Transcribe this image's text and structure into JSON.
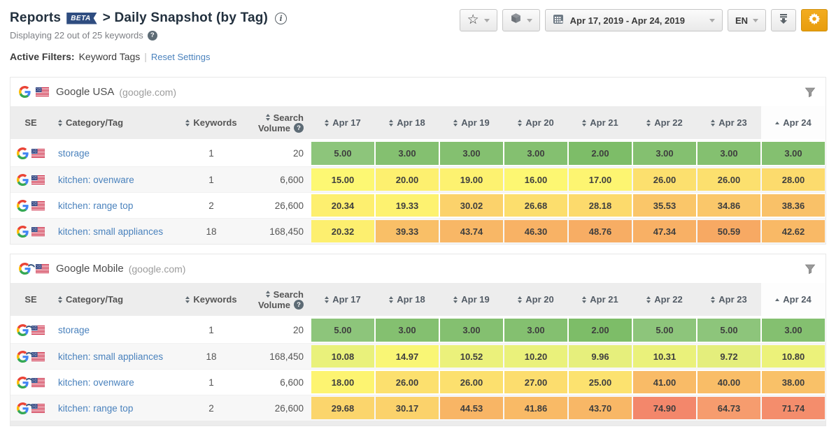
{
  "page": {
    "title": "Reports",
    "beta_badge": "BETA",
    "subtitle": "> Daily Snapshot (by Tag)",
    "info_icon_glyph": "i",
    "displaying_text": "Displaying 22 out of 25 keywords",
    "help_icon_glyph": "?",
    "active_filters_label": "Active Filters:",
    "active_filters_value": "Keyword Tags",
    "filters_separator": "|",
    "reset_link": "Reset Settings"
  },
  "toolbar": {
    "favorite_icon": "star-outline",
    "package_icon": "cube",
    "date_range": "Apr 17, 2019 - Apr 24, 2019",
    "language": "EN",
    "download_icon": "download-arrow",
    "settings_icon": "gear"
  },
  "columns": {
    "se": "SE",
    "category": "Category/Tag",
    "keywords": "Keywords",
    "search_label": "Search",
    "volume_label": "Volume",
    "dates": [
      "Apr 17",
      "Apr 18",
      "Apr 19",
      "Apr 20",
      "Apr 21",
      "Apr 22",
      "Apr 23",
      "Apr 24"
    ]
  },
  "colors": {
    "accent_orange": "#eea31a",
    "link_blue": "#4a82bd",
    "beta_badge_bg": "#2f4d80",
    "header_bg": "#ededed",
    "heat_green": "#84c070",
    "heat_yellow": "#fdf26f",
    "heat_orange": "#f8b265",
    "heat_red": "#f3876b"
  },
  "tables": [
    {
      "se_type": "google",
      "engine": "Google USA",
      "domain": "(google.com)",
      "rows": [
        {
          "tag": "storage",
          "keywords": "1",
          "volume": "20",
          "cells": [
            {
              "v": "5.00",
              "c": "#8dc57b"
            },
            {
              "v": "3.00",
              "c": "#84c070"
            },
            {
              "v": "3.00",
              "c": "#84c070"
            },
            {
              "v": "3.00",
              "c": "#84c070"
            },
            {
              "v": "2.00",
              "c": "#7dbd68"
            },
            {
              "v": "3.00",
              "c": "#84c070"
            },
            {
              "v": "3.00",
              "c": "#84c070"
            },
            {
              "v": "3.00",
              "c": "#84c070"
            }
          ]
        },
        {
          "tag": "kitchen: ovenware",
          "keywords": "1",
          "volume": "6,600",
          "cells": [
            {
              "v": "15.00",
              "c": "#fdf873"
            },
            {
              "v": "20.00",
              "c": "#fdf06f"
            },
            {
              "v": "19.00",
              "c": "#fdf270"
            },
            {
              "v": "16.00",
              "c": "#fdf772"
            },
            {
              "v": "17.00",
              "c": "#fdf571"
            },
            {
              "v": "26.00",
              "c": "#fce06e"
            },
            {
              "v": "26.00",
              "c": "#fce06e"
            },
            {
              "v": "28.00",
              "c": "#fcdb6d"
            }
          ]
        },
        {
          "tag": "kitchen: range top",
          "keywords": "2",
          "volume": "26,600",
          "cells": [
            {
              "v": "20.34",
              "c": "#fdef6f"
            },
            {
              "v": "19.33",
              "c": "#fdf270"
            },
            {
              "v": "30.02",
              "c": "#fbd26b"
            },
            {
              "v": "26.68",
              "c": "#fcde6d"
            },
            {
              "v": "28.18",
              "c": "#fcda6c"
            },
            {
              "v": "35.53",
              "c": "#fac669"
            },
            {
              "v": "34.86",
              "c": "#fac76a"
            },
            {
              "v": "38.36",
              "c": "#f9c168"
            }
          ]
        },
        {
          "tag": "kitchen: small appliances",
          "keywords": "18",
          "volume": "168,450",
          "cells": [
            {
              "v": "20.32",
              "c": "#fdef6f"
            },
            {
              "v": "39.33",
              "c": "#f9bf67"
            },
            {
              "v": "43.74",
              "c": "#f8b766"
            },
            {
              "v": "46.30",
              "c": "#f8b265"
            },
            {
              "v": "48.76",
              "c": "#f7ad64"
            },
            {
              "v": "47.34",
              "c": "#f8b065"
            },
            {
              "v": "50.59",
              "c": "#f7a963"
            },
            {
              "v": "42.62",
              "c": "#f9b966"
            }
          ]
        }
      ]
    },
    {
      "se_type": "google-mobile",
      "engine": "Google Mobile",
      "domain": "(google.com)",
      "rows": [
        {
          "tag": "storage",
          "keywords": "1",
          "volume": "20",
          "cells": [
            {
              "v": "5.00",
              "c": "#8dc57b"
            },
            {
              "v": "3.00",
              "c": "#84c070"
            },
            {
              "v": "3.00",
              "c": "#84c070"
            },
            {
              "v": "3.00",
              "c": "#84c070"
            },
            {
              "v": "2.00",
              "c": "#7dbd68"
            },
            {
              "v": "5.00",
              "c": "#8dc57b"
            },
            {
              "v": "5.00",
              "c": "#8dc57b"
            },
            {
              "v": "3.00",
              "c": "#84c070"
            }
          ]
        },
        {
          "tag": "kitchen: small appliances",
          "keywords": "18",
          "volume": "168,450",
          "cells": [
            {
              "v": "10.08",
              "c": "#e9f17b"
            },
            {
              "v": "14.97",
              "c": "#f9f675"
            },
            {
              "v": "10.52",
              "c": "#ebf17b"
            },
            {
              "v": "10.20",
              "c": "#eaf17b"
            },
            {
              "v": "9.96",
              "c": "#e6ef7c"
            },
            {
              "v": "10.31",
              "c": "#eaf17b"
            },
            {
              "v": "9.72",
              "c": "#e4ee7c"
            },
            {
              "v": "10.80",
              "c": "#ecf27a"
            }
          ]
        },
        {
          "tag": "kitchen: ovenware",
          "keywords": "1",
          "volume": "6,600",
          "cells": [
            {
              "v": "18.00",
              "c": "#fdf471"
            },
            {
              "v": "26.00",
              "c": "#fce06e"
            },
            {
              "v": "26.00",
              "c": "#fce06e"
            },
            {
              "v": "27.00",
              "c": "#fcdd6e"
            },
            {
              "v": "25.00",
              "c": "#fce26f"
            },
            {
              "v": "41.00",
              "c": "#f9bb67"
            },
            {
              "v": "40.00",
              "c": "#f9bd67"
            },
            {
              "v": "38.00",
              "c": "#f9c168"
            }
          ]
        },
        {
          "tag": "kitchen: range top",
          "keywords": "2",
          "volume": "26,600",
          "cells": [
            {
              "v": "29.68",
              "c": "#fbd56c"
            },
            {
              "v": "30.17",
              "c": "#fbd26b"
            },
            {
              "v": "44.53",
              "c": "#f8b565"
            },
            {
              "v": "41.86",
              "c": "#f9ba66"
            },
            {
              "v": "43.70",
              "c": "#f8b766"
            },
            {
              "v": "74.90",
              "c": "#f3876b"
            },
            {
              "v": "64.73",
              "c": "#f69c6e"
            },
            {
              "v": "71.74",
              "c": "#f48d6c"
            }
          ]
        }
      ]
    }
  ]
}
